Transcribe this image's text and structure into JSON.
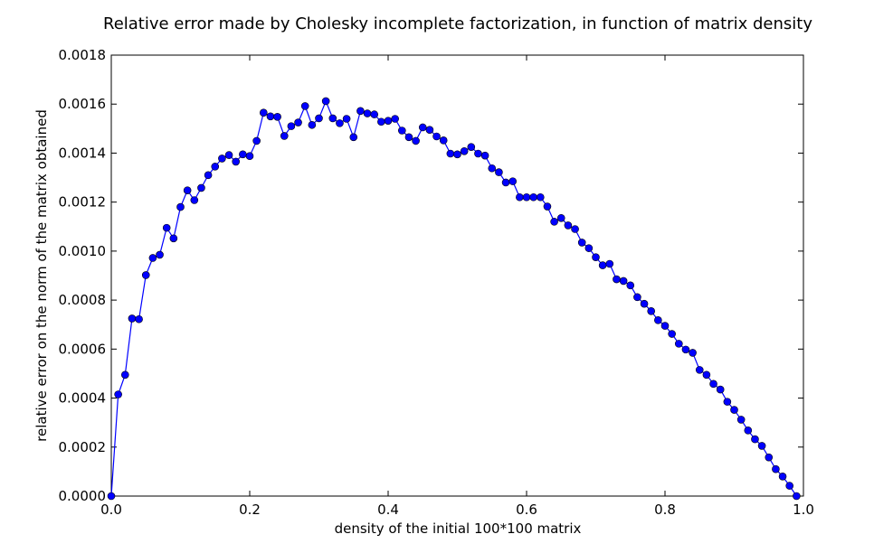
{
  "chart_data": {
    "type": "line",
    "title": "Relative error made by Cholesky incomplete factorization, in function of matrix density",
    "xlabel": "density of the initial 100*100 matrix",
    "ylabel": "relative error on the norm of the matrix obtained",
    "xlim": [
      0.0,
      1.0
    ],
    "ylim": [
      0.0,
      0.0018
    ],
    "xticks": [
      "0.0",
      "0.2",
      "0.4",
      "0.6",
      "0.8",
      "1.0"
    ],
    "yticks": [
      "0.0000",
      "0.0002",
      "0.0004",
      "0.0006",
      "0.0008",
      "0.0010",
      "0.0012",
      "0.0014",
      "0.0016",
      "0.0018"
    ],
    "grid": false,
    "line_color": "#0000ff",
    "series": [
      {
        "marker": "circle",
        "x": [
          0.0,
          0.01,
          0.02,
          0.03,
          0.04,
          0.05,
          0.06,
          0.07,
          0.08,
          0.09,
          0.1,
          0.11,
          0.12,
          0.13,
          0.14,
          0.15,
          0.16,
          0.17,
          0.18,
          0.19,
          0.2,
          0.21,
          0.22,
          0.23,
          0.24,
          0.25,
          0.26,
          0.27,
          0.28,
          0.29,
          0.3,
          0.31,
          0.32,
          0.33,
          0.34,
          0.35,
          0.36,
          0.37,
          0.38,
          0.39,
          0.4,
          0.41,
          0.42,
          0.43,
          0.44,
          0.45,
          0.46,
          0.47,
          0.48,
          0.49,
          0.5,
          0.51,
          0.52,
          0.53,
          0.54,
          0.55,
          0.56,
          0.57,
          0.58,
          0.59,
          0.6,
          0.61,
          0.62,
          0.63,
          0.64,
          0.65,
          0.66,
          0.67,
          0.68,
          0.69,
          0.7,
          0.71,
          0.72,
          0.73,
          0.74,
          0.75,
          0.76,
          0.77,
          0.78,
          0.79,
          0.8,
          0.81,
          0.82,
          0.83,
          0.84,
          0.85,
          0.86,
          0.87,
          0.88,
          0.89,
          0.9,
          0.91,
          0.92,
          0.93,
          0.94,
          0.95,
          0.96,
          0.97,
          0.98,
          0.99
        ],
        "y": [
          0.0,
          0.000415,
          0.000495,
          0.000725,
          0.000722,
          0.000902,
          0.000972,
          0.000985,
          0.001095,
          0.001052,
          0.00118,
          0.001248,
          0.001208,
          0.001258,
          0.00131,
          0.001345,
          0.001378,
          0.001392,
          0.001365,
          0.001395,
          0.001388,
          0.00145,
          0.001565,
          0.00155,
          0.001548,
          0.00147,
          0.00151,
          0.001525,
          0.001592,
          0.001515,
          0.001542,
          0.001612,
          0.001542,
          0.001522,
          0.00154,
          0.001465,
          0.001572,
          0.001562,
          0.001558,
          0.001528,
          0.001532,
          0.00154,
          0.001492,
          0.001465,
          0.00145,
          0.001505,
          0.001495,
          0.001468,
          0.001452,
          0.001398,
          0.001395,
          0.001408,
          0.001425,
          0.001398,
          0.00139,
          0.001338,
          0.001322,
          0.00128,
          0.001285,
          0.00122,
          0.00122,
          0.00122,
          0.00122,
          0.001182,
          0.00112,
          0.001135,
          0.001105,
          0.00109,
          0.001035,
          0.001012,
          0.000975,
          0.000942,
          0.000948,
          0.000885,
          0.000878,
          0.00086,
          0.000812,
          0.000785,
          0.000755,
          0.000718,
          0.000695,
          0.000662,
          0.000622,
          0.000598,
          0.000585,
          0.000515,
          0.000495,
          0.000458,
          0.000435,
          0.000385,
          0.000352,
          0.000312,
          0.000268,
          0.000232,
          0.000205,
          0.000158,
          0.00011,
          8e-05,
          4.2e-05,
          0.0
        ]
      }
    ]
  }
}
